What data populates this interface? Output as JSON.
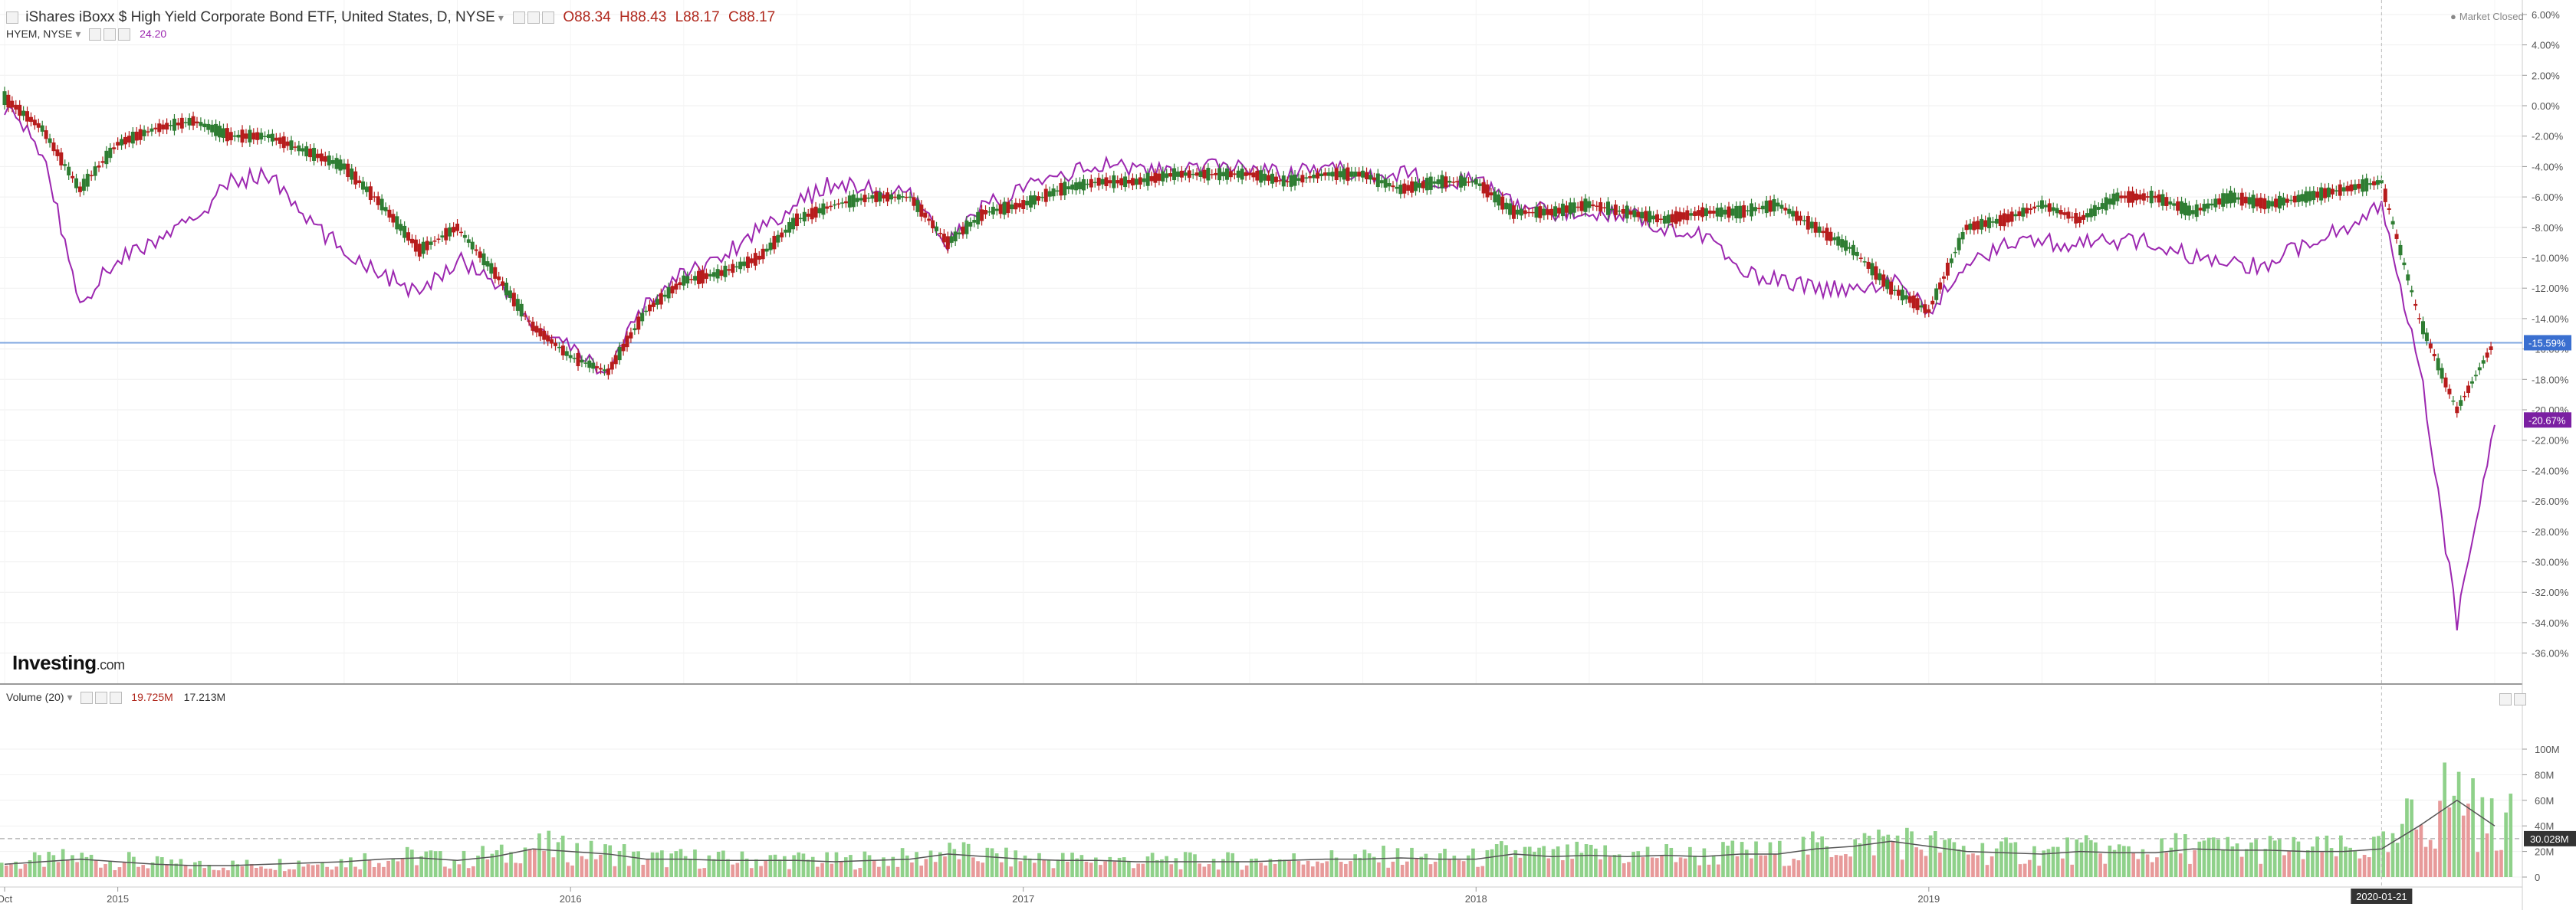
{
  "header": {
    "collapse_icon": "minus-square-icon",
    "symbol_title": "iShares iBoxx $ High Yield Corporate Bond ETF, United States, D, NYSE",
    "open": "O88.34",
    "high": "H88.43",
    "low": "L88.17",
    "close": "C88.17",
    "compare_symbol": "HYEM, NYSE",
    "compare_value": "24.20",
    "market_status": "Market Closed"
  },
  "logo": {
    "brand": "Investing",
    "suffix": ".com"
  },
  "volume_panel": {
    "label": "Volume (20)",
    "value1": "19.725M",
    "value2": "17.213M"
  },
  "colors": {
    "up": "#2e7d32",
    "down": "#b71c1c",
    "compare_line": "#9c27b0",
    "hline": "#7fa7e0",
    "vol_up": "#8fd18a",
    "vol_down": "#e79a9a",
    "vol_ma": "#555555"
  },
  "chart_data": [
    {
      "type": "candlestick",
      "title": "iShares iBoxx $ High Yield Corporate Bond ETF, United States, D, NYSE",
      "y_axis": "percent",
      "ylim": [
        -37,
        7
      ],
      "y_ticks": [
        "6.00%",
        "4.00%",
        "2.00%",
        "0.00%",
        "-2.00%",
        "-4.00%",
        "-6.00%",
        "-8.00%",
        "-10.00%",
        "-12.00%",
        "-14.00%",
        "-16.00%",
        "-18.00%",
        "-20.00%",
        "-22.00%",
        "-24.00%",
        "-26.00%",
        "-28.00%",
        "-30.00%",
        "-32.00%",
        "-34.00%",
        "-36.00%"
      ],
      "x_labels": [
        "Oct",
        "2015",
        "2016",
        "2017",
        "2018",
        "2019",
        "2020-01-21"
      ],
      "x": [
        "2014-10",
        "2014-11",
        "2014-12",
        "2015-01",
        "2015-02",
        "2015-03",
        "2015-04",
        "2015-05",
        "2015-06",
        "2015-07",
        "2015-08",
        "2015-09",
        "2015-10",
        "2015-11",
        "2015-12",
        "2016-01",
        "2016-02",
        "2016-03",
        "2016-04",
        "2016-05",
        "2016-06",
        "2016-07",
        "2016-08",
        "2016-09",
        "2016-10",
        "2016-11",
        "2016-12",
        "2017-01",
        "2017-02",
        "2017-03",
        "2017-04",
        "2017-05",
        "2017-06",
        "2017-07",
        "2017-08",
        "2017-09",
        "2017-10",
        "2017-11",
        "2017-12",
        "2018-01",
        "2018-02",
        "2018-03",
        "2018-04",
        "2018-05",
        "2018-06",
        "2018-07",
        "2018-08",
        "2018-09",
        "2018-10",
        "2018-11",
        "2018-12",
        "2019-01",
        "2019-02",
        "2019-03",
        "2019-04",
        "2019-05",
        "2019-06",
        "2019-07",
        "2019-08",
        "2019-09",
        "2019-10",
        "2019-11",
        "2019-12",
        "2020-01",
        "2020-02",
        "2020-03",
        "2020-04"
      ],
      "series": [
        {
          "name": "iShares iBoxx $ High Yield Corporate Bond ETF",
          "values": [
            0.5,
            -1.5,
            -5.5,
            -2.5,
            -1.5,
            -1.0,
            -2.0,
            -2.0,
            -3.0,
            -4.0,
            -6.5,
            -9.5,
            -8.0,
            -11.0,
            -14.5,
            -16.5,
            -17.5,
            -13.5,
            -11.5,
            -11.0,
            -10.0,
            -7.5,
            -6.5,
            -6.0,
            -6.0,
            -9.0,
            -7.0,
            -6.5,
            -5.5,
            -5.0,
            -5.0,
            -4.5,
            -4.5,
            -4.5,
            -5.0,
            -4.5,
            -4.5,
            -5.5,
            -5.0,
            -5.0,
            -7.0,
            -7.0,
            -6.5,
            -7.0,
            -7.5,
            -7.0,
            -7.0,
            -6.5,
            -8.0,
            -9.5,
            -12.0,
            -13.5,
            -8.0,
            -7.5,
            -6.5,
            -7.5,
            -6.0,
            -6.0,
            -7.0,
            -6.0,
            -6.5,
            -6.0,
            -5.5,
            -5.0,
            -14.0,
            -20.0,
            -15.5
          ]
        },
        {
          "name": "HYEM, NYSE",
          "values": [
            0.0,
            -3.0,
            -13.0,
            -10.0,
            -9.0,
            -7.5,
            -5.0,
            -4.5,
            -7.5,
            -9.5,
            -11.0,
            -12.5,
            -10.0,
            -11.5,
            -14.5,
            -16.0,
            -17.5,
            -13.0,
            -11.0,
            -10.0,
            -8.0,
            -6.5,
            -5.0,
            -5.5,
            -6.0,
            -9.0,
            -6.5,
            -5.5,
            -4.5,
            -4.0,
            -4.0,
            -4.5,
            -4.0,
            -4.0,
            -4.5,
            -4.0,
            -4.5,
            -4.5,
            -5.0,
            -5.0,
            -6.5,
            -7.0,
            -7.0,
            -7.0,
            -8.0,
            -8.5,
            -11.0,
            -11.5,
            -12.0,
            -12.0,
            -11.5,
            -13.5,
            -10.5,
            -9.0,
            -9.0,
            -9.0,
            -9.0,
            -9.0,
            -10.0,
            -10.5,
            -10.5,
            -9.0,
            -8.0,
            -6.5,
            -17.0,
            -34.0,
            -21.0
          ]
        }
      ],
      "current_markers": [
        "-15.59%",
        "-20.67%"
      ],
      "grid": true
    },
    {
      "type": "bar",
      "title": "Volume (20)",
      "y_ticks": [
        "100M",
        "80M",
        "60M",
        "40M",
        "20M",
        "0"
      ],
      "ylim": [
        0,
        105
      ],
      "current_label": "30.028M",
      "x": [
        "2014-10",
        "2014-11",
        "2014-12",
        "2015-01",
        "2015-02",
        "2015-03",
        "2015-04",
        "2015-05",
        "2015-06",
        "2015-07",
        "2015-08",
        "2015-09",
        "2015-10",
        "2015-11",
        "2015-12",
        "2016-01",
        "2016-02",
        "2016-03",
        "2016-04",
        "2016-05",
        "2016-06",
        "2016-07",
        "2016-08",
        "2016-09",
        "2016-10",
        "2016-11",
        "2016-12",
        "2017-01",
        "2017-02",
        "2017-03",
        "2017-04",
        "2017-05",
        "2017-06",
        "2017-07",
        "2017-08",
        "2017-09",
        "2017-10",
        "2017-11",
        "2017-12",
        "2018-01",
        "2018-02",
        "2018-03",
        "2018-04",
        "2018-05",
        "2018-06",
        "2018-07",
        "2018-08",
        "2018-09",
        "2018-10",
        "2018-11",
        "2018-12",
        "2019-01",
        "2019-02",
        "2019-03",
        "2019-04",
        "2019-05",
        "2019-06",
        "2019-07",
        "2019-08",
        "2019-09",
        "2019-10",
        "2019-11",
        "2019-12",
        "2020-01",
        "2020-02",
        "2020-03",
        "2020-04"
      ],
      "values": [
        10,
        12,
        14,
        12,
        10,
        9,
        9,
        10,
        11,
        12,
        14,
        15,
        13,
        16,
        22,
        20,
        18,
        14,
        14,
        13,
        13,
        13,
        12,
        13,
        14,
        18,
        16,
        14,
        13,
        13,
        12,
        12,
        12,
        12,
        13,
        14,
        14,
        15,
        14,
        14,
        18,
        16,
        17,
        16,
        17,
        16,
        18,
        18,
        22,
        24,
        28,
        24,
        20,
        19,
        18,
        20,
        19,
        19,
        22,
        21,
        21,
        20,
        20,
        22,
        40,
        60,
        40
      ]
    }
  ]
}
